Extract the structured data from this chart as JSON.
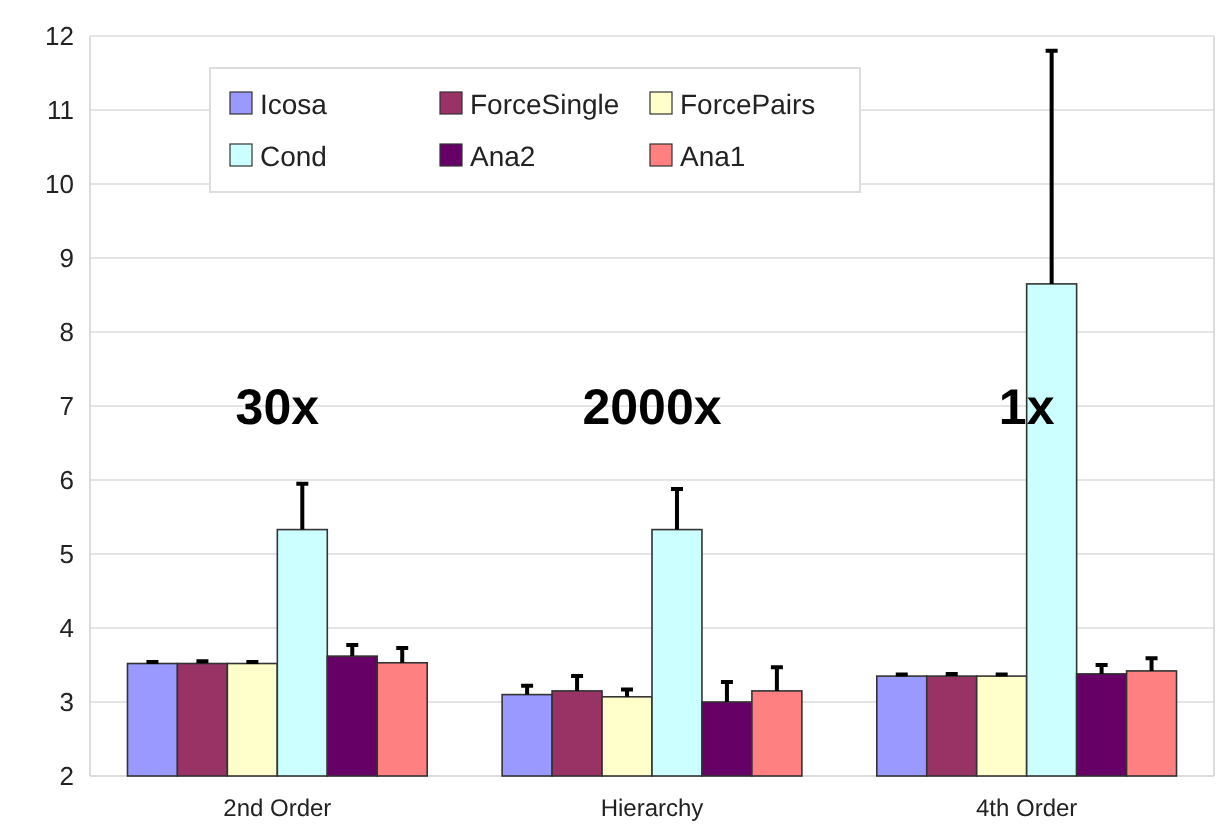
{
  "chart_data": {
    "type": "bar",
    "categories": [
      "2nd Order",
      "Hierarchy",
      "4th Order"
    ],
    "series": [
      {
        "name": "Icosa",
        "color": "#9999ff",
        "values": [
          3.52,
          3.1,
          3.35
        ],
        "errors": [
          [
            3.52,
            3.54
          ],
          [
            3.1,
            3.22
          ],
          [
            3.35,
            3.37
          ]
        ]
      },
      {
        "name": "ForceSingle",
        "color": "#993366",
        "values": [
          3.52,
          3.15,
          3.35
        ],
        "errors": [
          [
            3.52,
            3.55
          ],
          [
            3.15,
            3.35
          ],
          [
            3.35,
            3.38
          ]
        ]
      },
      {
        "name": "ForcePairs",
        "color": "#ffffcc",
        "values": [
          3.52,
          3.07,
          3.35
        ],
        "errors": [
          [
            3.52,
            3.54
          ],
          [
            3.07,
            3.17
          ],
          [
            3.35,
            3.37
          ]
        ]
      },
      {
        "name": "Cond",
        "color": "#ccffff",
        "values": [
          5.33,
          5.33,
          8.65
        ],
        "errors": [
          [
            5.33,
            5.95
          ],
          [
            5.33,
            5.88
          ],
          [
            8.65,
            11.8
          ]
        ]
      },
      {
        "name": "Ana2",
        "color": "#660066",
        "values": [
          3.62,
          3.0,
          3.38
        ],
        "errors": [
          [
            3.62,
            3.77
          ],
          [
            3.0,
            3.27
          ],
          [
            3.38,
            3.5
          ]
        ]
      },
      {
        "name": "Ana1",
        "color": "#ff8080",
        "values": [
          3.53,
          3.15,
          3.42
        ],
        "errors": [
          [
            3.53,
            3.73
          ],
          [
            3.15,
            3.47
          ],
          [
            3.42,
            3.59
          ]
        ]
      }
    ],
    "ylim": [
      2,
      12
    ],
    "yticks": [
      2,
      3,
      4,
      5,
      6,
      7,
      8,
      9,
      10,
      11,
      12
    ],
    "grid": "y",
    "legend": "top left",
    "annotations": [
      "30x",
      "2000x",
      "1x"
    ]
  }
}
